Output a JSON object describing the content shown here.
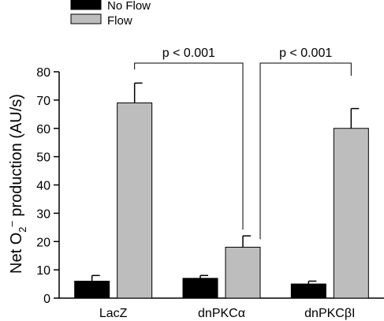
{
  "chart_data": {
    "type": "bar",
    "categories": [
      "LacZ",
      "dnPKCα",
      "dnPKCβI"
    ],
    "series": [
      {
        "name": "No Flow",
        "color": "#000000",
        "values": [
          6,
          7,
          5
        ],
        "errors": [
          2,
          1,
          1
        ]
      },
      {
        "name": "Flow",
        "color": "#bdbdbd",
        "values": [
          69,
          18,
          60
        ],
        "errors": [
          7,
          4,
          7
        ]
      }
    ],
    "ylabel": "Net O2¯ production (AU/s)",
    "ylabel_parts": {
      "pre": "Net O",
      "sub": "2",
      "sup": "–",
      "post": " production (AU/s)"
    },
    "ylim": [
      0,
      80
    ],
    "yticks": [
      "0",
      "10",
      "20",
      "30",
      "40",
      "50",
      "60",
      "70",
      "80"
    ],
    "legend": {
      "position": "top-left"
    },
    "annotations": [
      {
        "text": "p < 0.001",
        "from": "LacZ Flow",
        "to": "dnPKCα Flow"
      },
      {
        "text": "p < 0.001",
        "from": "dnPKCα Flow",
        "to": "dnPKCβI Flow"
      }
    ],
    "grid": false
  }
}
